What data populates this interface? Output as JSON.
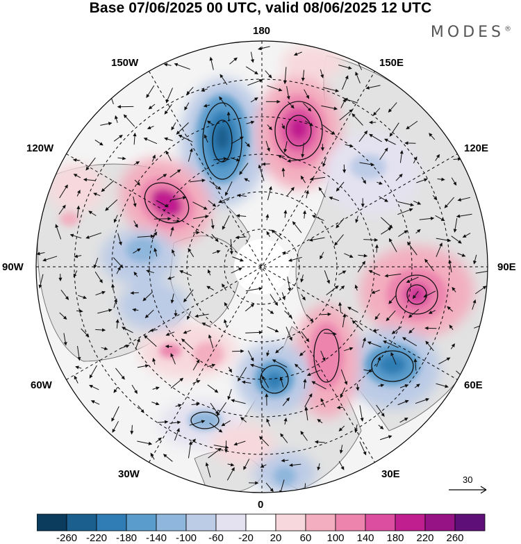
{
  "title": "Base 07/06/2025 00 UTC, valid 08/06/2025 12 UTC",
  "brand": "MODES",
  "brand_mark": "®",
  "longitude_labels": {
    "lon_180": "180",
    "lon_150e": "150E",
    "lon_120e": "120E",
    "lon_90e": "90E",
    "lon_60e": "60E",
    "lon_30e": "30E",
    "lon_0": "0",
    "lon_30w": "30W",
    "lon_60w": "60W",
    "lon_90w": "90W",
    "lon_120w": "120W",
    "lon_150w": "150W"
  },
  "wind_reference": {
    "label": "30"
  },
  "colorbar": {
    "levels": [
      "-260",
      "-220",
      "-180",
      "-140",
      "-100",
      "-60",
      "-20",
      "20",
      "60",
      "100",
      "140",
      "180",
      "220",
      "260"
    ],
    "colors": [
      "#0b3c5d",
      "#1a5f8e",
      "#2f7db4",
      "#5a9ccc",
      "#8fb6dc",
      "#bccbe6",
      "#e4e2f0",
      "#ffffff",
      "#f7d9dd",
      "#f3aebf",
      "#ec84ad",
      "#dc4fa0",
      "#c01f90",
      "#951384",
      "#5e0f78"
    ]
  },
  "colors": {
    "land_shading": "#e6e6e6",
    "coastline": "#555555",
    "graticule": "#000000"
  }
}
